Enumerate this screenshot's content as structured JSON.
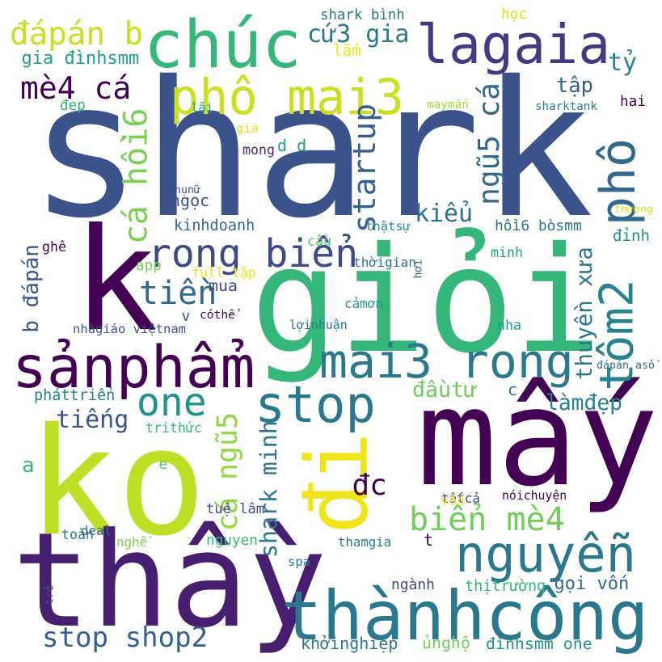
{
  "words": [
    {
      "text": "shark",
      "color": "#3b528b",
      "vertical": false
    },
    {
      "text": "giỏi",
      "color": "#35b779",
      "vertical": false
    },
    {
      "text": "k",
      "color": "#440154",
      "vertical": false
    },
    {
      "text": "ko",
      "color": "#bddf26",
      "vertical": false
    },
    {
      "text": "mấy",
      "color": "#440154",
      "vertical": false
    },
    {
      "text": "thầy",
      "color": "#481f70",
      "vertical": false
    },
    {
      "text": "đi",
      "color": "#f0e51b",
      "vertical": true
    },
    {
      "text": "thànhcông",
      "color": "#2a788e",
      "vertical": false
    },
    {
      "text": "chúc",
      "color": "#35b779",
      "vertical": false
    },
    {
      "text": "lagaia",
      "color": "#443983",
      "vertical": false
    },
    {
      "text": "phô mai3",
      "color": "#c8e020",
      "vertical": false
    },
    {
      "text": "sảnphẩm",
      "color": "#440154",
      "vertical": false
    },
    {
      "text": "nguyễn",
      "color": "#2a788e",
      "vertical": false
    },
    {
      "text": "tôm2",
      "color": "#26828e",
      "vertical": true
    },
    {
      "text": "phô",
      "color": "#31688e",
      "vertical": true
    },
    {
      "text": "mai3 rong",
      "color": "#2a788e",
      "vertical": false
    },
    {
      "text": "stop",
      "color": "#2a788e",
      "vertical": false
    },
    {
      "text": "one",
      "color": "#20928c",
      "vertical": false
    },
    {
      "text": "rong biển",
      "color": "#3e4989",
      "vertical": false
    },
    {
      "text": "biển mè4",
      "color": "#6ece58",
      "vertical": false
    },
    {
      "text": "đápán b",
      "color": "#c8e020",
      "vertical": false
    },
    {
      "text": "mè4 cá",
      "color": "#440154",
      "vertical": false
    },
    {
      "text": "cứ3 gia",
      "color": "#2a788e",
      "vertical": false
    },
    {
      "text": "cá hồi6",
      "color": "#7ad151",
      "vertical": true
    },
    {
      "text": "ngũ5 cá",
      "color": "#31688e",
      "vertical": true
    },
    {
      "text": "startup",
      "color": "#355f8d",
      "vertical": true
    },
    {
      "text": "cá ngũ5",
      "color": "#8fd744",
      "vertical": true
    },
    {
      "text": "tiền",
      "color": "#31688e",
      "vertical": false
    },
    {
      "text": "stop shop2",
      "color": "#355f8d",
      "vertical": false
    },
    {
      "text": "tỷ",
      "color": "#26828e",
      "vertical": false
    },
    {
      "text": "tập",
      "color": "#355f8d",
      "vertical": false
    },
    {
      "text": "kiểu",
      "color": "#2d708e",
      "vertical": false
    },
    {
      "text": "thuyền xưa",
      "color": "#2a788e",
      "vertical": true
    },
    {
      "text": "shark minh",
      "color": "#2a788e",
      "vertical": true
    },
    {
      "text": "đầutư",
      "color": "#6ece58",
      "vertical": false
    },
    {
      "text": "làmđẹp",
      "color": "#26828e",
      "vertical": false
    },
    {
      "text": "tiếng",
      "color": "#39568c",
      "vertical": false
    },
    {
      "text": "đc",
      "color": "#440154",
      "vertical": false
    },
    {
      "text": "b đápán",
      "color": "#39568c",
      "vertical": true
    },
    {
      "text": "gia đìnhsmm",
      "color": "#1f9e89",
      "vertical": false
    },
    {
      "text": "shark bình",
      "color": "#2a788e",
      "vertical": false
    },
    {
      "text": "học",
      "color": "#dde318",
      "vertical": false
    },
    {
      "text": "lắm",
      "color": "#f1e51d",
      "vertical": false
    },
    {
      "text": "đẹp",
      "color": "#35b779",
      "vertical": false
    },
    {
      "text": "lãi",
      "color": "#1f9e89",
      "vertical": false
    },
    {
      "text": "maymắn",
      "color": "#a5db36",
      "vertical": false
    },
    {
      "text": "sharktank",
      "color": "#287d8e",
      "vertical": false
    },
    {
      "text": "hai",
      "color": "#440154",
      "vertical": false
    },
    {
      "text": "giá",
      "color": "#dde318",
      "vertical": false
    },
    {
      "text": "mong",
      "color": "#482878",
      "vertical": false
    },
    {
      "text": "d d",
      "color": "#1f9e89",
      "vertical": false
    },
    {
      "text": "phụnữ",
      "color": "#3e4989",
      "vertical": false
    },
    {
      "text": "ngọc",
      "color": "#3b528b",
      "vertical": false
    },
    {
      "text": "thương",
      "color": "#dde318",
      "vertical": false
    },
    {
      "text": "kinhdoanh",
      "color": "#31688e",
      "vertical": false
    },
    {
      "text": "thậtsự",
      "color": "#228c8d",
      "vertical": false
    },
    {
      "text": "hồi6 bòsmm",
      "color": "#2a788e",
      "vertical": false
    },
    {
      "text": "đỉnh",
      "color": "#20928c",
      "vertical": false
    },
    {
      "text": "ghê",
      "color": "#440154",
      "vertical": false
    },
    {
      "text": "cầu",
      "color": "#52c569",
      "vertical": false
    },
    {
      "text": "minh",
      "color": "#1f9e89",
      "vertical": false
    },
    {
      "text": "app",
      "color": "#7ad151",
      "vertical": false
    },
    {
      "text": "full tập",
      "color": "#f1e51d",
      "vertical": false
    },
    {
      "text": "thờigian",
      "color": "#2a788e",
      "vertical": false
    },
    {
      "text": "hơi",
      "color": "#31688e",
      "vertical": true
    },
    {
      "text": "mua",
      "color": "#3e4989",
      "vertical": false
    },
    {
      "text": "v",
      "color": "#3b528b",
      "vertical": false
    },
    {
      "text": "cóthể",
      "color": "#440154",
      "vertical": false
    },
    {
      "text": "cảmơn",
      "color": "#1f9e89",
      "vertical": false
    },
    {
      "text": "nhàgiáo việtnam",
      "color": "#3b528b",
      "vertical": false
    },
    {
      "text": "lợinhuận",
      "color": "#2a788e",
      "vertical": false
    },
    {
      "text": "nha",
      "color": "#1f9e89",
      "vertical": false
    },
    {
      "text": "đápán asố",
      "color": "#31688e",
      "vertical": false
    },
    {
      "text": "pháttriển",
      "color": "#26828e",
      "vertical": false
    },
    {
      "text": "c",
      "color": "#2a788e",
      "vertical": false
    },
    {
      "text": "trithức",
      "color": "#35b779",
      "vertical": false
    },
    {
      "text": "a",
      "color": "#35b779",
      "vertical": false
    },
    {
      "text": "e",
      "color": "#52c569",
      "vertical": false
    },
    {
      "text": "tuệ lâm",
      "color": "#3e4989",
      "vertical": false
    },
    {
      "text": "tấtcả",
      "color": "#3b528b",
      "vertical": false
    },
    {
      "text": "vốn",
      "color": "#fde725",
      "vertical": false
    },
    {
      "text": "nóichuyện",
      "color": "#440154",
      "vertical": false
    },
    {
      "text": "toàn",
      "color": "#2a788e",
      "vertical": false
    },
    {
      "text": "deal",
      "color": "#31688e",
      "vertical": false
    },
    {
      "text": "nghề",
      "color": "#7ad151",
      "vertical": false
    },
    {
      "text": "nguyen",
      "color": "#35b779",
      "vertical": false
    },
    {
      "text": "thamgia",
      "color": "#2a788e",
      "vertical": false
    },
    {
      "text": "t",
      "color": "#440154",
      "vertical": false
    },
    {
      "text": "spa",
      "color": "#2a788e",
      "vertical": false
    },
    {
      "text": "trẻ",
      "color": "#3e4989",
      "vertical": true
    },
    {
      "text": "ngành",
      "color": "#3e4989",
      "vertical": false
    },
    {
      "text": "thịtrường",
      "color": "#35b779",
      "vertical": false
    },
    {
      "text": "gọi vốn",
      "color": "#31688e",
      "vertical": false
    },
    {
      "text": "khởinghiệp",
      "color": "#2a788e",
      "vertical": false
    },
    {
      "text": "ủnghộ",
      "color": "#6ece58",
      "vertical": false
    },
    {
      "text": "đìnhsmm one",
      "color": "#20928c",
      "vertical": false
    }
  ]
}
